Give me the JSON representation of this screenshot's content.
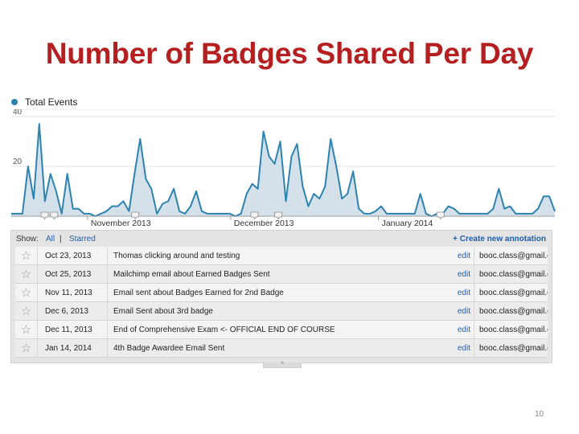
{
  "slide": {
    "title": "Number of Badges Shared Per Day",
    "page_number": "10"
  },
  "colors": {
    "title": "#b51f1f",
    "line": "#2d83b0",
    "area_fill": "#d5e1ea",
    "link": "#1f5fa8"
  },
  "chart_data": {
    "type": "area",
    "title": "",
    "legend": [
      {
        "name": "Total Events",
        "position": "top-left"
      }
    ],
    "x_axis": {
      "start": "2013-10-16",
      "end": "2014-02-07",
      "tick_labels": [
        {
          "label": "November 2013",
          "date": "2013-11-01"
        },
        {
          "label": "December 2013",
          "date": "2013-12-01"
        },
        {
          "label": "January 2014",
          "date": "2014-01-01"
        }
      ]
    },
    "y_axis": {
      "ylim": [
        0,
        40
      ],
      "tick_labels": [
        "40",
        "20"
      ],
      "ticks": [
        40,
        20
      ]
    },
    "grid": true,
    "series": [
      {
        "name": "Total Events",
        "values": [
          1,
          1,
          1,
          20,
          7,
          37,
          6,
          17,
          10,
          1,
          17,
          3,
          3,
          1,
          1,
          0,
          1,
          2,
          4,
          4,
          6,
          2,
          17,
          31,
          15,
          11,
          1,
          5,
          6,
          11,
          2,
          1,
          4,
          10,
          2,
          1,
          1,
          1,
          1,
          1,
          0,
          1,
          9,
          13,
          11,
          34,
          24,
          21,
          30,
          6,
          24,
          29,
          12,
          4,
          9,
          7,
          12,
          31,
          20,
          7,
          9,
          18,
          3,
          1,
          1,
          2,
          4,
          1,
          1,
          1,
          1,
          1,
          1,
          9,
          1,
          0,
          1,
          1,
          4,
          3,
          1,
          1,
          1,
          1,
          1,
          1,
          3,
          11,
          3,
          4,
          1,
          1,
          1,
          1,
          3,
          8,
          8,
          2
        ]
      }
    ],
    "annotation_markers": [
      "2013-10-23",
      "2013-10-25",
      "2013-11-11",
      "2013-12-06",
      "2013-12-11",
      "2014-01-14"
    ]
  },
  "annotations_panel": {
    "show_label": "Show:",
    "filter_all": "All",
    "filter_separator": "|",
    "filter_starred": "Starred",
    "create_label": "+ Create new annotation",
    "drag_handle_glyph": "^",
    "rows": [
      {
        "date": "Oct 23, 2013",
        "text": "Thomas clicking around and testing",
        "action": "edit",
        "author": "booc.class@gmail.com",
        "star_icon": "star-outline-icon"
      },
      {
        "date": "Oct 25, 2013",
        "text": "Mailchimp email about Earned Badges Sent",
        "action": "edit",
        "author": "booc.class@gmail.com",
        "star_icon": "star-outline-icon"
      },
      {
        "date": "Nov 11, 2013",
        "text": "Email sent about Badges Earned for 2nd Badge",
        "action": "edit",
        "author": "booc.class@gmail.com",
        "star_icon": "star-outline-icon"
      },
      {
        "date": "Dec 6, 2013",
        "text": "Email Sent about 3rd badge",
        "action": "edit",
        "author": "booc.class@gmail.com",
        "star_icon": "star-outline-icon"
      },
      {
        "date": "Dec 11, 2013",
        "text": "End of Comprehensive Exam <- OFFICIAL END OF COURSE",
        "action": "edit",
        "author": "booc.class@gmail.com",
        "star_icon": "star-outline-icon"
      },
      {
        "date": "Jan 14, 2014",
        "text": "4th Badge Awardee Email Sent",
        "action": "edit",
        "author": "booc.class@gmail.com",
        "star_icon": "star-outline-icon"
      }
    ]
  }
}
